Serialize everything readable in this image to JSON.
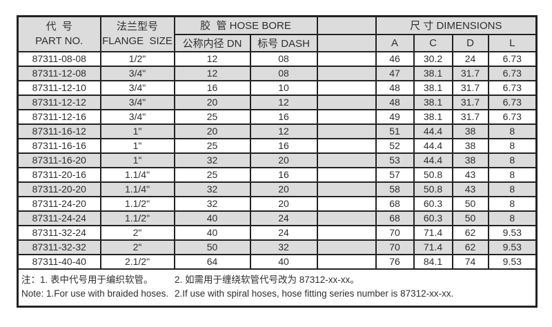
{
  "table": {
    "header": {
      "part_no_zh": "代  号",
      "part_no_en": "PART NO.",
      "flange_zh": "法兰型号",
      "flange_en": "FLANGE  SIZE",
      "hose_bore": "胶  管 HOSE BORE",
      "dn": "公称内径 DN",
      "dash": "标号 DASH",
      "dimensions": "尺 寸 DIMENSIONS",
      "dim_a": "A",
      "dim_c": "C",
      "dim_d": "D",
      "dim_l": "L"
    },
    "rows": [
      {
        "part_no": "87311-08-08",
        "flange_size": "1/2\"",
        "dn": "12",
        "dash": "08",
        "a": "46",
        "c": "30.2",
        "d": "24",
        "l": "6.73"
      },
      {
        "part_no": "87311-12-08",
        "flange_size": "3/4\"",
        "dn": "12",
        "dash": "08",
        "a": "47",
        "c": "38.1",
        "d": "31.7",
        "l": "6.73"
      },
      {
        "part_no": "87311-12-10",
        "flange_size": "3/4\"",
        "dn": "16",
        "dash": "10",
        "a": "48",
        "c": "38.1",
        "d": "31.7",
        "l": "6.73"
      },
      {
        "part_no": "87311-12-12",
        "flange_size": "3/4\"",
        "dn": "20",
        "dash": "12",
        "a": "48",
        "c": "38.1",
        "d": "31.7",
        "l": "6.73"
      },
      {
        "part_no": "87311-12-16",
        "flange_size": "3/4\"",
        "dn": "25",
        "dash": "16",
        "a": "49",
        "c": "38.1",
        "d": "31.7",
        "l": "6.73"
      },
      {
        "part_no": "87311-16-12",
        "flange_size": "1\"",
        "dn": "20",
        "dash": "12",
        "a": "51",
        "c": "44.4",
        "d": "38",
        "l": "8"
      },
      {
        "part_no": "87311-16-16",
        "flange_size": "1\"",
        "dn": "25",
        "dash": "16",
        "a": "52",
        "c": "44.4",
        "d": "38",
        "l": "8"
      },
      {
        "part_no": "87311-16-20",
        "flange_size": "1\"",
        "dn": "32",
        "dash": "20",
        "a": "53",
        "c": "44.4",
        "d": "38",
        "l": "8"
      },
      {
        "part_no": "87311-20-16",
        "flange_size": "1.1/4\"",
        "dn": "25",
        "dash": "16",
        "a": "57",
        "c": "50.8",
        "d": "43",
        "l": "8"
      },
      {
        "part_no": "87311-20-20",
        "flange_size": "1.1/4\"",
        "dn": "32",
        "dash": "20",
        "a": "58",
        "c": "50.8",
        "d": "43",
        "l": "8"
      },
      {
        "part_no": "87311-24-20",
        "flange_size": "1.1/2\"",
        "dn": "32",
        "dash": "20",
        "a": "68",
        "c": "60.3",
        "d": "50",
        "l": "8"
      },
      {
        "part_no": "87311-24-24",
        "flange_size": "1.1/2\"",
        "dn": "40",
        "dash": "24",
        "a": "68",
        "c": "60.3",
        "d": "50",
        "l": "8"
      },
      {
        "part_no": "87311-32-24",
        "flange_size": "2\"",
        "dn": "40",
        "dash": "24",
        "a": "70",
        "c": "71.4",
        "d": "62",
        "l": "9.53"
      },
      {
        "part_no": "87311-32-32",
        "flange_size": "2\"",
        "dn": "50",
        "dash": "32",
        "a": "70",
        "c": "71.4",
        "d": "62",
        "l": "9.53"
      },
      {
        "part_no": "87311-40-40",
        "flange_size": "2.1/2\"",
        "dn": "64",
        "dash": "40",
        "a": "76",
        "c": "84.1",
        "d": "74",
        "l": "9.53"
      }
    ],
    "notes": {
      "zh_left": "注：1. 表中代号用于编织软管。",
      "zh_right": "2. 如需用于缠绕软管代号改为 87312-xx-xx。",
      "en_left": "Note: 1.For use with braided hoses.",
      "en_right": "2.If use with spiral hoses, hose fitting series number is 87312-xx-xx."
    },
    "colors": {
      "header_bg": "#dcdcdc",
      "stripe_bg": "#dcdcdc",
      "border": "#222222",
      "text": "#2e2e2e"
    }
  }
}
